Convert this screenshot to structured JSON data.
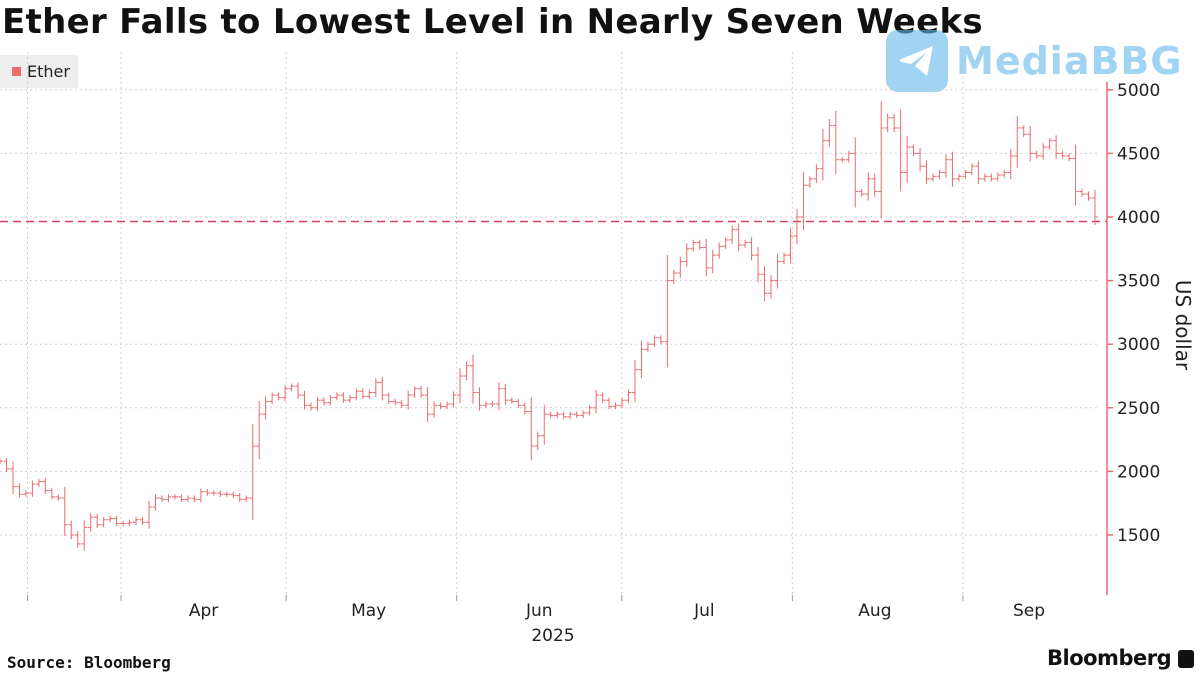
{
  "header": {
    "title": "Ether Falls to Lowest Level in Nearly Seven Weeks"
  },
  "watermark": {
    "text": "MediaBBG",
    "icon": "telegram-icon"
  },
  "footer": {
    "source": "Source: Bloomberg",
    "brand": "Bloomberg",
    "brand_icon": "bloomberg-terminal-icon"
  },
  "colors": {
    "series": "#e96b6b",
    "reference_line": "#d9425a",
    "grid": "#cfcfcf",
    "watermark": "#62b8ea"
  },
  "chart_data": {
    "type": "line",
    "style": "ohlc-bars",
    "title": "Ether Falls to Lowest Level in Nearly Seven Weeks",
    "ylabel": "US dollar",
    "xlabel": "2025",
    "x_tick_labels": [
      "Apr",
      "May",
      "Jun",
      "Jul",
      "Aug",
      "Sep"
    ],
    "y_ticks": [
      1500,
      2000,
      2500,
      3000,
      3500,
      4000,
      4500,
      5000
    ],
    "ylim": [
      1100,
      5100
    ],
    "legend": {
      "entries": [
        "Ether"
      ],
      "placement": "top-left"
    },
    "grid": true,
    "y_axis_side": "right",
    "reference_line": {
      "value": 3965,
      "style": "dashed"
    },
    "series": [
      {
        "name": "Ether",
        "x_start": "2025-03-10",
        "x_end": "2025-09-25",
        "interval": "daily",
        "values": [
          2080,
          2020,
          1880,
          1820,
          1830,
          1900,
          1920,
          1850,
          1800,
          1790,
          1580,
          1500,
          1430,
          1560,
          1640,
          1580,
          1620,
          1630,
          1590,
          1590,
          1600,
          1620,
          1600,
          1720,
          1790,
          1780,
          1800,
          1800,
          1780,
          1790,
          1780,
          1840,
          1830,
          1830,
          1820,
          1820,
          1810,
          1780,
          1790,
          2200,
          2450,
          2550,
          2600,
          2580,
          2650,
          2670,
          2600,
          2520,
          2500,
          2560,
          2540,
          2580,
          2600,
          2560,
          2580,
          2630,
          2590,
          2620,
          2700,
          2600,
          2550,
          2540,
          2520,
          2600,
          2650,
          2600,
          2450,
          2520,
          2510,
          2530,
          2600,
          2750,
          2830,
          2620,
          2520,
          2530,
          2530,
          2650,
          2560,
          2550,
          2520,
          2470,
          2200,
          2280,
          2450,
          2440,
          2450,
          2430,
          2450,
          2440,
          2460,
          2500,
          2600,
          2560,
          2510,
          2520,
          2560,
          2620,
          2800,
          2960,
          3000,
          3050,
          3020,
          3500,
          3560,
          3650,
          3750,
          3800,
          3760,
          3600,
          3700,
          3770,
          3820,
          3900,
          3780,
          3800,
          3700,
          3550,
          3400,
          3500,
          3650,
          3700,
          3850,
          4000,
          4250,
          4300,
          4380,
          4600,
          4720,
          4450,
          4450,
          4500,
          4200,
          4180,
          4300,
          4200,
          4700,
          4780,
          4700,
          4350,
          4550,
          4500,
          4400,
          4300,
          4320,
          4350,
          4450,
          4300,
          4320,
          4350,
          4400,
          4300,
          4320,
          4300,
          4330,
          4350,
          4480,
          4700,
          4650,
          4500,
          4480,
          4550,
          4600,
          4500,
          4480,
          4460,
          4200,
          4180,
          4150,
          4000
        ]
      }
    ]
  }
}
